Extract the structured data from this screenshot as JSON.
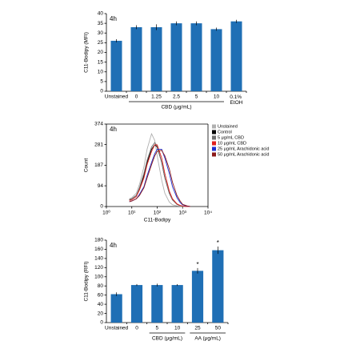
{
  "chart_data": [
    {
      "type": "bar",
      "annotation": "4h",
      "ylabel": "C11-Bodipy (MFI)",
      "categories": [
        "Unstained",
        "0",
        "1.25",
        "2.5",
        "5",
        "10",
        "0.1% EtOH"
      ],
      "values": [
        26,
        33,
        33,
        35,
        35,
        32,
        36
      ],
      "errors": [
        0.8,
        1,
        1.5,
        1,
        1,
        0.8,
        0.8
      ],
      "color": "#1f6fb5",
      "groups": [
        {
          "label": "CBD (μg/mL)",
          "categories": [
            "0",
            "1.25",
            "2.5",
            "5",
            "10"
          ]
        }
      ],
      "ylim": [
        0,
        40
      ],
      "yticks": [
        0,
        5,
        10,
        15,
        20,
        25,
        30,
        35,
        40
      ]
    },
    {
      "type": "line",
      "annotation": "4h",
      "ylabel": "Count",
      "xlabel": "C11-Bodipy",
      "xlog": true,
      "legend": "right",
      "x": [
        8,
        10,
        15,
        20,
        30,
        40,
        60,
        80,
        100,
        150,
        200,
        300,
        400,
        600,
        800,
        1000,
        1500,
        2000
      ],
      "series": [
        {
          "name": "Unstained",
          "color": "#b0b0b0",
          "values": [
            35,
            40,
            60,
            100,
            180,
            260,
            330,
            300,
            230,
            120,
            60,
            20,
            8,
            3,
            1,
            0,
            0,
            0
          ]
        },
        {
          "name": "Control",
          "color": "#000000",
          "values": [
            30,
            35,
            50,
            80,
            140,
            200,
            260,
            280,
            270,
            200,
            130,
            60,
            30,
            10,
            4,
            2,
            0,
            0
          ]
        },
        {
          "name": "5 μg/mL CBD",
          "color": "#707070",
          "values": [
            32,
            35,
            50,
            85,
            150,
            210,
            270,
            290,
            275,
            200,
            130,
            60,
            30,
            10,
            4,
            2,
            0,
            0
          ]
        },
        {
          "name": "10 μg/mL CBD",
          "color": "#e0201e",
          "values": [
            28,
            30,
            45,
            75,
            130,
            190,
            250,
            280,
            280,
            220,
            150,
            70,
            35,
            12,
            5,
            2,
            0,
            0
          ]
        },
        {
          "name": "25 μg/mL Arachidonic acid",
          "color": "#1f2fd0",
          "values": [
            22,
            25,
            35,
            55,
            90,
            140,
            200,
            240,
            260,
            260,
            220,
            150,
            90,
            40,
            18,
            8,
            2,
            0
          ]
        },
        {
          "name": "50 μg/mL Arachidonic acid",
          "color": "#8b1a1a",
          "values": [
            22,
            25,
            35,
            50,
            85,
            130,
            190,
            230,
            250,
            255,
            230,
            170,
            110,
            50,
            25,
            10,
            3,
            0
          ]
        }
      ],
      "xlim": [
        1,
        10000
      ],
      "xticks": [
        {
          "value": 1,
          "label": "10⁰"
        },
        {
          "value": 10,
          "label": "10¹"
        },
        {
          "value": 100,
          "label": "10²"
        },
        {
          "value": 1000,
          "label": "10³"
        },
        {
          "value": 10000,
          "label": "10⁴"
        }
      ],
      "ylim": [
        0,
        374
      ],
      "yticks": [
        0,
        94,
        187,
        281,
        374
      ]
    },
    {
      "type": "bar",
      "annotation": "4h",
      "ylabel": "C11-Bodipy (RFI)",
      "categories": [
        "Unstained",
        "0",
        "5",
        "10",
        "25",
        "50"
      ],
      "values": [
        62,
        82,
        82,
        82,
        113,
        158
      ],
      "errors": [
        4,
        2,
        3,
        2,
        6,
        8
      ],
      "significance": [
        null,
        null,
        null,
        null,
        "*",
        "*"
      ],
      "color": "#1f6fb5",
      "groups": [
        {
          "label": "CBD (μg/mL)",
          "categories": [
            "5",
            "10"
          ]
        },
        {
          "label": "AA (μg/mL)",
          "categories": [
            "25",
            "50"
          ]
        }
      ],
      "ylim": [
        0,
        180
      ],
      "yticks": [
        0,
        20,
        40,
        60,
        80,
        100,
        120,
        140,
        160,
        180
      ]
    }
  ]
}
